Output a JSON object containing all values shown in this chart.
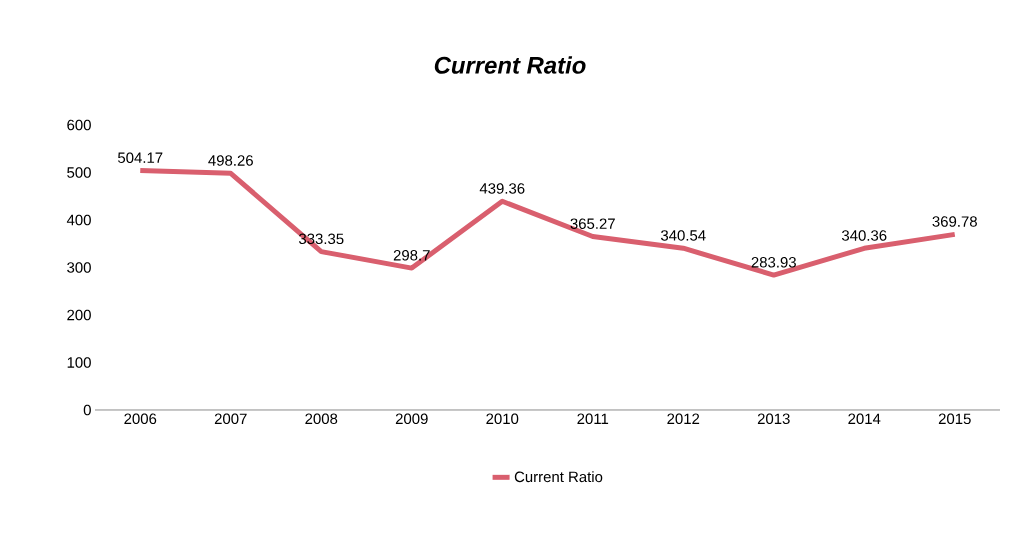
{
  "chart_data": {
    "type": "line",
    "title": "Current Ratio",
    "categories": [
      "2006",
      "2007",
      "2008",
      "2009",
      "2010",
      "2011",
      "2012",
      "2013",
      "2014",
      "2015"
    ],
    "series": [
      {
        "name": "Current Ratio",
        "color": "#d95f6e",
        "values": [
          504.17,
          498.26,
          333.35,
          298.7,
          439.36,
          365.27,
          340.54,
          283.93,
          340.36,
          369.78
        ]
      }
    ],
    "ylim": [
      0,
      600
    ],
    "yticks": [
      0,
      100,
      200,
      300,
      400,
      500,
      600
    ],
    "data_labels": true,
    "legend": "bottom",
    "marker": "none",
    "line_style": "solid",
    "grid": false
  }
}
